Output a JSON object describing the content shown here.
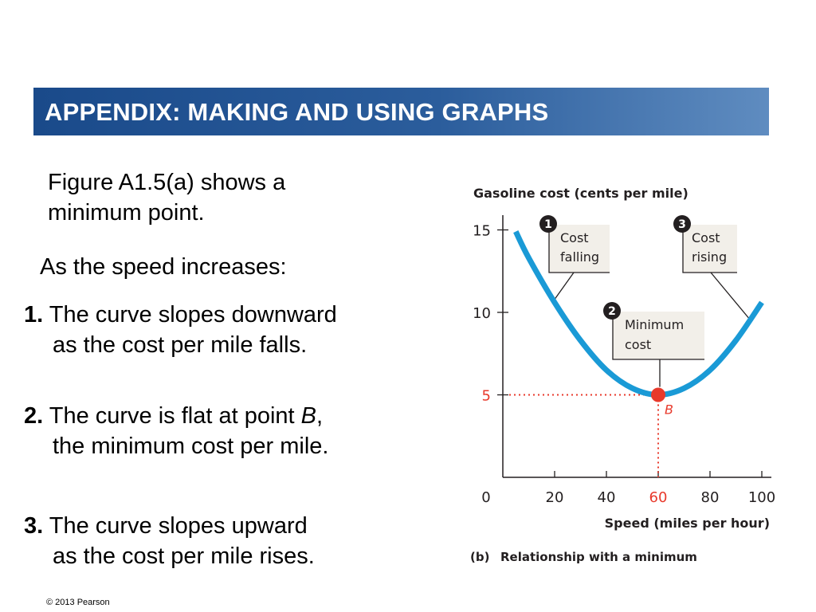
{
  "slide": {
    "title": "APPENDIX: MAKING AND USING GRAPHS",
    "intro_line1": "Figure A1.5(a) shows a",
    "intro_line2": "minimum point.",
    "speed_line": "As the speed increases:",
    "items": [
      {
        "number": "1.",
        "line1": "The curve slopes downward",
        "line2": "as the cost per mile falls."
      },
      {
        "number": "2.",
        "line1_pre": "The curve is flat at point ",
        "line1_italic": "B",
        "line1_post": ",",
        "line2": "the minimum cost per mile."
      },
      {
        "number": "3.",
        "line1": "The curve slopes upward",
        "line2": "as the cost per mile rises."
      }
    ],
    "copyright": "© 2013 Pearson"
  },
  "chart_data": {
    "type": "line",
    "title": "Gasoline cost (cents per mile)",
    "xlabel": "Speed (miles per hour)",
    "caption_prefix": "(b)",
    "caption": "Relationship with a minimum",
    "xlim": [
      0,
      105
    ],
    "ylim": [
      0,
      16
    ],
    "x_ticks": [
      0,
      20,
      40,
      60,
      80,
      100
    ],
    "y_ticks": [
      5,
      10,
      15
    ],
    "series": [
      {
        "x": [
          5,
          10,
          20,
          30,
          40,
          50,
          60,
          70,
          80,
          90,
          100
        ],
        "y": [
          14.9,
          13.3,
          10.6,
          8.3,
          6.5,
          5.4,
          5.0,
          5.4,
          6.5,
          8.3,
          10.6
        ]
      }
    ],
    "minimum_point": {
      "label": "B",
      "x": 60,
      "y": 5
    },
    "annotations": [
      {
        "number": "1",
        "line1": "Cost",
        "line2": "falling"
      },
      {
        "number": "2",
        "line1": "Minimum",
        "line2": "cost"
      },
      {
        "number": "3",
        "line1": "Cost",
        "line2": "rising"
      }
    ],
    "colors": {
      "curve": "#1a9ad6",
      "highlight": "#e8392b",
      "axis": "#231f20",
      "callout_bg": "#f2efe9"
    }
  }
}
